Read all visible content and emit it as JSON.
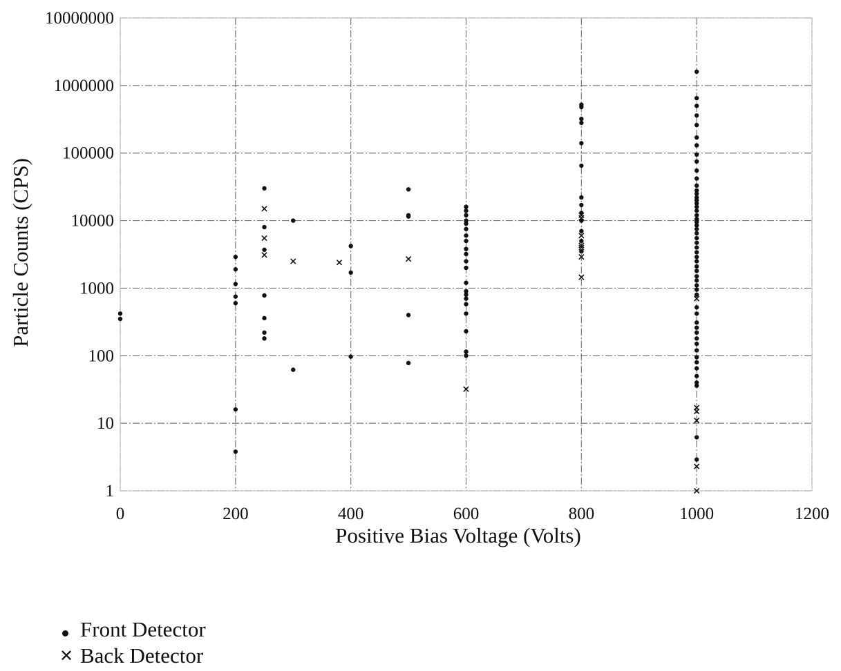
{
  "chart_data": {
    "type": "scatter",
    "xlabel": "Positive Bias Voltage (Volts)",
    "ylabel": "Particle Counts (CPS)",
    "xlim": [
      0,
      1200
    ],
    "ylim": [
      1,
      10000000
    ],
    "yscale": "log",
    "x_ticks": [
      "0",
      "200",
      "400",
      "600",
      "800",
      "1000",
      "1200"
    ],
    "y_ticks": [
      "1",
      "10",
      "100",
      "1000",
      "10000",
      "100000",
      "1000000",
      "10000000"
    ],
    "grid": true,
    "legend_position": "bottom-left",
    "series": [
      {
        "name": "Front Detector",
        "marker": "dot",
        "color": "#111111",
        "points": [
          [
            0,
            420
          ],
          [
            0,
            350
          ],
          [
            200,
            2900
          ],
          [
            200,
            1900
          ],
          [
            200,
            1150
          ],
          [
            200,
            750
          ],
          [
            200,
            600
          ],
          [
            200,
            16
          ],
          [
            200,
            3.8
          ],
          [
            250,
            30000
          ],
          [
            250,
            8000
          ],
          [
            250,
            3700
          ],
          [
            250,
            780
          ],
          [
            250,
            360
          ],
          [
            250,
            220
          ],
          [
            250,
            180
          ],
          [
            300,
            10000
          ],
          [
            300,
            62
          ],
          [
            400,
            4200
          ],
          [
            400,
            1700
          ],
          [
            400,
            97
          ],
          [
            500,
            29000
          ],
          [
            500,
            12000
          ],
          [
            500,
            11500
          ],
          [
            500,
            400
          ],
          [
            500,
            78
          ],
          [
            600,
            16000
          ],
          [
            600,
            14000
          ],
          [
            600,
            12000
          ],
          [
            600,
            10000
          ],
          [
            600,
            9000
          ],
          [
            600,
            7500
          ],
          [
            600,
            6000
          ],
          [
            600,
            5000
          ],
          [
            600,
            3800
          ],
          [
            600,
            3200
          ],
          [
            600,
            2500
          ],
          [
            600,
            2000
          ],
          [
            600,
            1200
          ],
          [
            600,
            900
          ],
          [
            600,
            800
          ],
          [
            600,
            700
          ],
          [
            600,
            580
          ],
          [
            600,
            420
          ],
          [
            600,
            230
          ],
          [
            600,
            115
          ],
          [
            600,
            100
          ],
          [
            800,
            520000
          ],
          [
            800,
            480000
          ],
          [
            800,
            320000
          ],
          [
            800,
            280000
          ],
          [
            800,
            140000
          ],
          [
            800,
            65000
          ],
          [
            800,
            22000
          ],
          [
            800,
            17000
          ],
          [
            800,
            13000
          ],
          [
            800,
            10000
          ],
          [
            800,
            7000
          ],
          [
            800,
            5000
          ],
          [
            800,
            3500
          ],
          [
            1000,
            1600000
          ],
          [
            1000,
            650000
          ],
          [
            1000,
            500000
          ],
          [
            1000,
            360000
          ],
          [
            1000,
            260000
          ],
          [
            1000,
            170000
          ],
          [
            1000,
            130000
          ],
          [
            1000,
            95000
          ],
          [
            1000,
            75000
          ],
          [
            1000,
            55000
          ],
          [
            1000,
            42000
          ],
          [
            1000,
            33000
          ],
          [
            1000,
            28000
          ],
          [
            1000,
            25000
          ],
          [
            1000,
            22000
          ],
          [
            1000,
            20000
          ],
          [
            1000,
            18000
          ],
          [
            1000,
            16000
          ],
          [
            1000,
            14000
          ],
          [
            1000,
            12000
          ],
          [
            1000,
            10500
          ],
          [
            1000,
            9500
          ],
          [
            1000,
            8500
          ],
          [
            1000,
            7500
          ],
          [
            1000,
            6500
          ],
          [
            1000,
            5500
          ],
          [
            1000,
            4700
          ],
          [
            1000,
            4000
          ],
          [
            1000,
            3400
          ],
          [
            1000,
            2900
          ],
          [
            1000,
            2500
          ],
          [
            1000,
            2100
          ],
          [
            1000,
            1800
          ],
          [
            1000,
            1500
          ],
          [
            1000,
            1300
          ],
          [
            1000,
            1100
          ],
          [
            1000,
            950
          ],
          [
            1000,
            800
          ],
          [
            1000,
            520
          ],
          [
            1000,
            420
          ],
          [
            1000,
            310
          ],
          [
            1000,
            260
          ],
          [
            1000,
            220
          ],
          [
            1000,
            180
          ],
          [
            1000,
            150
          ],
          [
            1000,
            120
          ],
          [
            1000,
            95
          ],
          [
            1000,
            80
          ],
          [
            1000,
            65
          ],
          [
            1000,
            50
          ],
          [
            1000,
            40
          ],
          [
            1000,
            36
          ],
          [
            1000,
            6.2
          ],
          [
            1000,
            2.9
          ]
        ]
      },
      {
        "name": "Back Detector",
        "marker": "x",
        "color": "#111111",
        "points": [
          [
            250,
            15000
          ],
          [
            250,
            5500
          ],
          [
            250,
            3100
          ],
          [
            300,
            2500
          ],
          [
            380,
            2400
          ],
          [
            500,
            2700
          ],
          [
            600,
            32
          ],
          [
            800,
            12000
          ],
          [
            800,
            11000
          ],
          [
            800,
            6000
          ],
          [
            800,
            4300
          ],
          [
            800,
            4000
          ],
          [
            800,
            2900
          ],
          [
            800,
            1450
          ],
          [
            1000,
            700
          ],
          [
            1000,
            17
          ],
          [
            1000,
            15
          ],
          [
            1000,
            11
          ],
          [
            1000,
            2.3
          ],
          [
            1000,
            1.0
          ]
        ]
      }
    ]
  }
}
